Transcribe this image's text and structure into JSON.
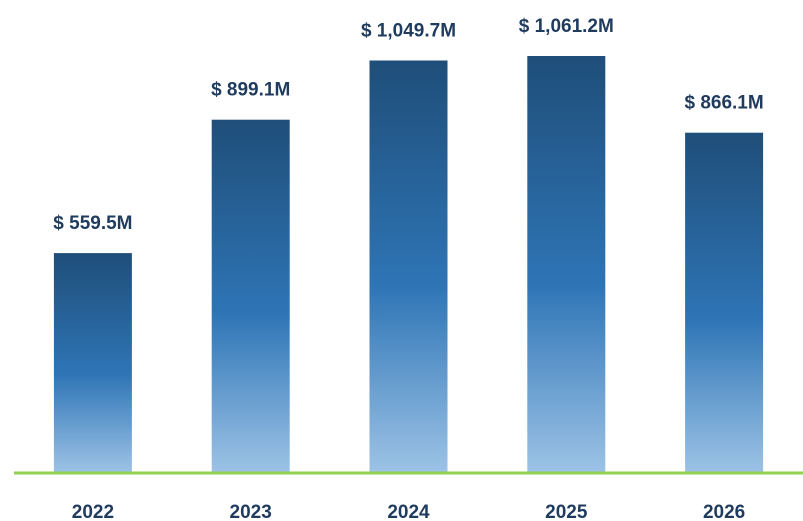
{
  "chart_data": {
    "type": "bar",
    "categories": [
      "2022",
      "2023",
      "2024",
      "2025",
      "2026"
    ],
    "values": [
      559.5,
      899.1,
      1049.7,
      1061.2,
      866.1
    ],
    "data_labels": [
      "$ 559.5M",
      "$ 899.1M",
      "$ 1,049.7M",
      "$ 1,061.2M",
      "$ 866.1M"
    ],
    "title": "",
    "xlabel": "",
    "ylabel": "",
    "ylim": [
      0,
      1200
    ],
    "grid": false,
    "legend": "none",
    "colors": {
      "bar_top": "#1f4e79",
      "bar_mid": "#2e75b6",
      "bar_bottom": "#9dc3e6",
      "baseline": "#92d050",
      "label_text": "#1f3b5e"
    }
  }
}
